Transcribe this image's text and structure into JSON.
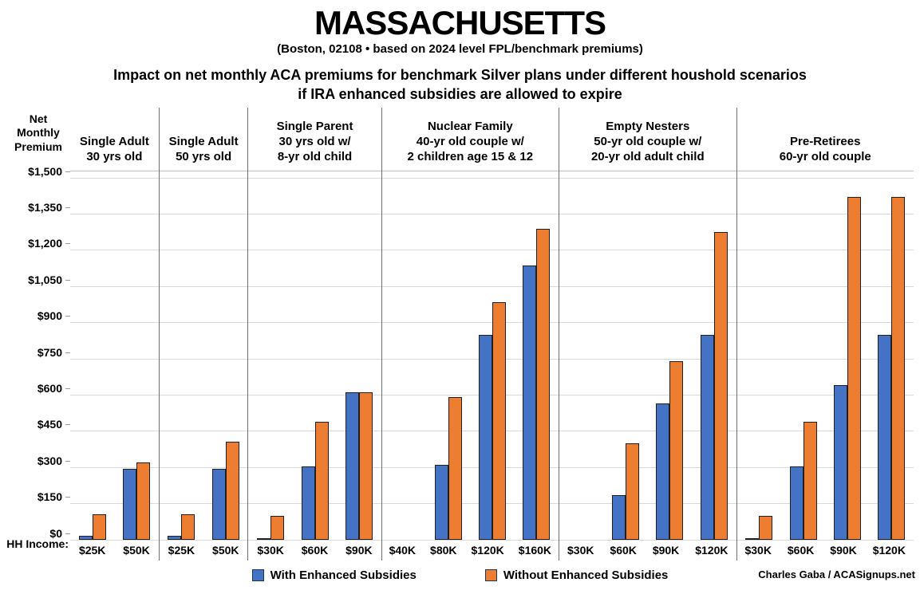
{
  "header": {
    "title": "MASSACHUSETTS",
    "subtitle": "(Boston, 02108 • based on 2024 level FPL/benchmark premiums)",
    "description_line1": "Impact on net monthly ACA premiums for benchmark Silver plans under different houshold scenarios",
    "description_line2": "if IRA enhanced subsidies are allowed to expire"
  },
  "chart_data": {
    "type": "bar",
    "title": "MASSACHUSETTS",
    "ylabel": "Net Monthly Premium",
    "xlabel_prefix": "HH Income:",
    "ylim": [
      0,
      1500
    ],
    "ytick_step": 150,
    "ytick_labels": [
      "$1,500",
      "$1,350",
      "$1,200",
      "$1,050",
      "$900",
      "$750",
      "$600",
      "$450",
      "$300",
      "$150",
      "$0"
    ],
    "grid": true,
    "legend_position": "bottom",
    "series": [
      {
        "name": "With Enhanced Subsidies",
        "color": "#4472C4"
      },
      {
        "name": "Without Enhanced Subsidies",
        "color": "#ED7D31"
      }
    ],
    "groups": [
      {
        "label_lines": [
          "Single Adult",
          "30 yrs old"
        ],
        "categories": [
          "$25K",
          "$50K"
        ],
        "with_enhanced": [
          15,
          295
        ],
        "without_enhanced": [
          105,
          320
        ]
      },
      {
        "label_lines": [
          "Single Adult",
          "50 yrs old"
        ],
        "categories": [
          "$25K",
          "$50K"
        ],
        "with_enhanced": [
          15,
          295
        ],
        "without_enhanced": [
          105,
          405
        ]
      },
      {
        "label_lines": [
          "Single Parent",
          "30 yrs old w/",
          "8-yr old child"
        ],
        "categories": [
          "$30K",
          "$60K",
          "$90K"
        ],
        "with_enhanced": [
          5,
          305,
          610
        ],
        "without_enhanced": [
          100,
          490,
          610
        ]
      },
      {
        "label_lines": [
          "Nuclear Family",
          "40-yr old couple w/",
          "2 children age 15 & 12"
        ],
        "categories": [
          "$40K",
          "$80K",
          "$120K",
          "$160K"
        ],
        "with_enhanced": [
          0,
          310,
          850,
          1135
        ],
        "without_enhanced": [
          0,
          590,
          985,
          1290
        ]
      },
      {
        "label_lines": [
          "Empty Nesters",
          "50-yr old couple w/",
          "20-yr old adult child"
        ],
        "categories": [
          "$30K",
          "$60K",
          "$90K",
          "$120K"
        ],
        "with_enhanced": [
          0,
          185,
          565,
          850
        ],
        "without_enhanced": [
          0,
          400,
          740,
          1275
        ]
      },
      {
        "label_lines": [
          "Pre-Retirees",
          "60-yr old couple"
        ],
        "categories": [
          "$30K",
          "$60K",
          "$90K",
          "$120K"
        ],
        "with_enhanced": [
          5,
          305,
          640,
          850
        ],
        "without_enhanced": [
          100,
          490,
          1420,
          1420
        ]
      }
    ]
  },
  "footer": {
    "credit": "Charles Gaba / ACASignups.net"
  }
}
